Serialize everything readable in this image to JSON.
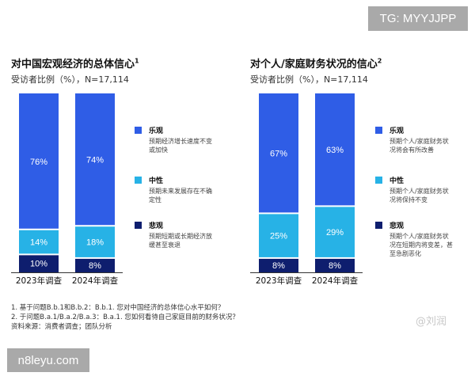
{
  "watermarks": {
    "top": "TG: MYYJJPP",
    "bottom": "n8leyu.com",
    "weibo": "@刘润"
  },
  "colors": {
    "optimistic": "#2f5de6",
    "neutral": "#27b2e6",
    "pessimistic": "#0e1e6e"
  },
  "chart_data": [
    {
      "type": "bar",
      "stacked": true,
      "title": "对中国宏观经济的总体信心",
      "title_sup": "1",
      "subtitle": "受访者比例（%），N=17,114",
      "categories": [
        "2023年调查",
        "2024年调查"
      ],
      "series": [
        {
          "name": "悲观",
          "desc": "预期短期或长期经济放缓甚至衰退",
          "values": [
            10,
            8
          ]
        },
        {
          "name": "中性",
          "desc": "预期未来发展存在不确定性",
          "values": [
            14,
            18
          ]
        },
        {
          "name": "乐观",
          "desc": "预期经济增长速度不变或加快",
          "values": [
            76,
            74
          ]
        }
      ],
      "legend": "right"
    },
    {
      "type": "bar",
      "stacked": true,
      "title": "对个人/家庭财务状况的信心",
      "title_sup": "2",
      "subtitle": "受访者比例（%），N=17,114",
      "categories": [
        "2023年调查",
        "2024年调查"
      ],
      "series": [
        {
          "name": "悲观",
          "desc": "预期个人/家庭财务状况在短期内将变差，甚至急剧恶化",
          "values": [
            8,
            8
          ]
        },
        {
          "name": "中性",
          "desc": "预期个人/家庭财务状况将保持不变",
          "values": [
            25,
            29
          ]
        },
        {
          "name": "乐观",
          "desc": "预期个人/家庭财务状况将会有所改善",
          "values": [
            67,
            63
          ]
        }
      ],
      "legend": "right"
    }
  ],
  "footnotes": [
    "1.    基于问题B.b.1和B.b.2：B.b.1. 您对中国经济的总体信心水平如何？",
    "2.    于问题B.a.1/B.a.2/B.a.3：B.a.1. 您如何看待自己家庭目前的财务状况？",
    "资料来源：消费者调查；团队分析"
  ]
}
